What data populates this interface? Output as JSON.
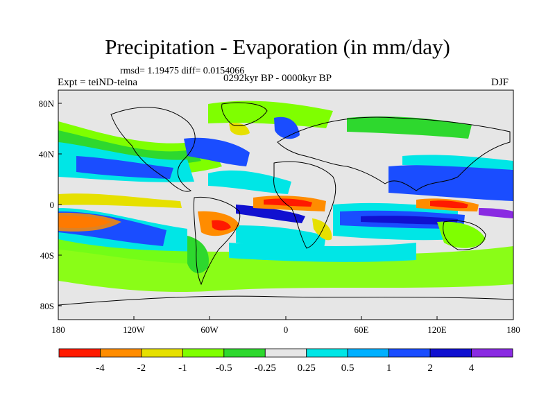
{
  "header": {
    "title": "Precipitation - Evaporation (in mm/day)",
    "stats": "rmsd= 1.19475 diff= 0.0154066",
    "experiment": "Expt = teiND-teina",
    "period": "0292kyr BP - 0000kyr BP",
    "season": "DJF"
  },
  "axes": {
    "x_ticks": [
      "180",
      "120W",
      "60W",
      "0",
      "60E",
      "120E",
      "180"
    ],
    "y_ticks": [
      "80N",
      "40N",
      "0",
      "40S",
      "80S"
    ]
  },
  "colorbar": {
    "colors": [
      "#ff1a00",
      "#ff8c00",
      "#e6e000",
      "#7fff00",
      "#2ed82e",
      "#e6e6e6",
      "#00e6e6",
      "#00b0ff",
      "#1a4dff",
      "#1010d0",
      "#8a2be2"
    ],
    "labels": [
      "-4",
      "-2",
      "-1",
      "-0.5",
      "-0.25",
      "0.25",
      "0.5",
      "1",
      "2",
      "4"
    ]
  },
  "map": {
    "background": "#e6e6e6"
  }
}
